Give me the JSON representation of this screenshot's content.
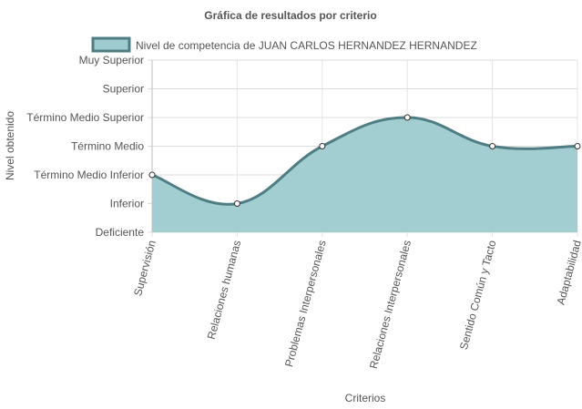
{
  "chart_data": {
    "type": "area",
    "title": "Gráfica de resultados por criterio",
    "xlabel": "Criterios",
    "ylabel": "Nivel obtenido",
    "categories": [
      "Supervisión",
      "Relaciones humanas",
      "Problemas Interpersonales",
      "Relaciones Interpersonales",
      "Sentido Común y Tacto",
      "Adaptabilidad"
    ],
    "y_levels": [
      "Deficiente",
      "Inferior",
      "Término Medio Inferior",
      "Término Medio",
      "Término Medio Superior",
      "Superior",
      "Muy Superior"
    ],
    "ylim": [
      0,
      6
    ],
    "series": [
      {
        "name": "Nivel de competencia de JUAN CARLOS HERNANDEZ HERNANDEZ",
        "values": [
          2,
          1,
          3,
          4,
          3,
          3
        ],
        "fill_color": "#9ecbcf",
        "line_color": "#4f7d84"
      }
    ],
    "grid": true,
    "legend_position": "top"
  }
}
